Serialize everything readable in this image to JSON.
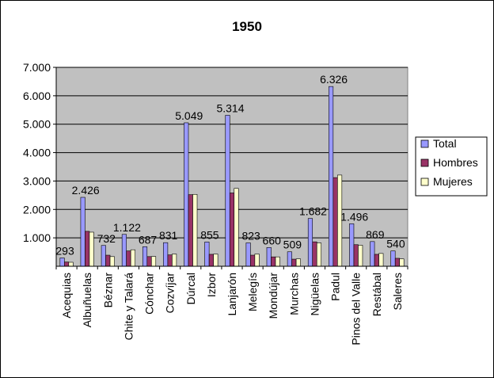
{
  "chart_data": {
    "type": "bar",
    "title": "1950",
    "xlabel": "",
    "ylabel": "",
    "ylim": [
      0,
      7000
    ],
    "yticks": [
      "7.000",
      "6.000",
      "5.000",
      "4.000",
      "3.000",
      "2.000",
      "1.000"
    ],
    "ytick_values": [
      7000,
      6000,
      5000,
      4000,
      3000,
      2000,
      1000
    ],
    "grid": true,
    "legend_position": "right",
    "categories": [
      "Acequias",
      "Albuñuelas",
      "Béznar",
      "Chite y Talará",
      "Cónchar",
      "Cozvíjar",
      "Dúrcal",
      "Izbor",
      "Lanjarón",
      "Melegís",
      "Mondújar",
      "Murchas",
      "Nigüelas",
      "Padul",
      "Pinos del Valle",
      "Restábal",
      "Saleres"
    ],
    "total_labels": [
      "293",
      "2.426",
      "732",
      "1.122",
      "687",
      "831",
      "5.049",
      "855",
      "5.314",
      "823",
      "660",
      "509",
      "1.682",
      "6.326",
      "1.496",
      "869",
      "540"
    ],
    "series": [
      {
        "name": "Total",
        "color": "#9999ff",
        "values": [
          293,
          2426,
          732,
          1122,
          687,
          831,
          5049,
          855,
          5314,
          823,
          660,
          509,
          1682,
          6326,
          1496,
          869,
          540
        ]
      },
      {
        "name": "Hombres",
        "color": "#993366",
        "values": [
          150,
          1230,
          390,
          540,
          340,
          400,
          2520,
          420,
          2580,
          390,
          330,
          250,
          860,
          3120,
          760,
          420,
          280
        ]
      },
      {
        "name": "Mujeres",
        "color": "#ffffcc",
        "values": [
          140,
          1200,
          340,
          580,
          345,
          430,
          2530,
          430,
          2740,
          430,
          330,
          260,
          820,
          3210,
          740,
          450,
          260
        ]
      }
    ],
    "plot_background": "#c0c0c0"
  }
}
